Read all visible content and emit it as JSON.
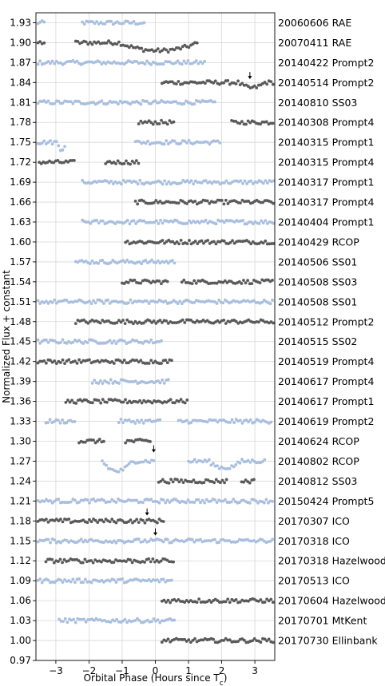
{
  "chart_data": {
    "type": "scatter",
    "title": "",
    "xlabel": "Orbital Phase (Hours since T",
    "xlabel_subscript": "c",
    "xlabel_close": ")",
    "ylabel": "Normalized Flux + constant",
    "xlim": [
      -3.6,
      3.6
    ],
    "ylim": [
      0.97,
      1.945
    ],
    "xticks": [
      -3,
      -2,
      -1,
      0,
      1,
      2,
      3
    ],
    "xtick_labels": [
      "−3",
      "−2",
      "−1",
      "0",
      "1",
      "2",
      "3"
    ],
    "yticks": [
      0.97,
      1.0,
      1.03,
      1.06,
      1.09,
      1.12,
      1.15,
      1.18,
      1.21,
      1.24,
      1.27,
      1.3,
      1.33,
      1.36,
      1.39,
      1.42,
      1.45,
      1.48,
      1.51,
      1.54,
      1.57,
      1.6,
      1.63,
      1.66,
      1.69,
      1.72,
      1.75,
      1.78,
      1.81,
      1.84,
      1.87,
      1.9,
      1.93
    ],
    "ytick_labels": [
      "0.97",
      "1.00",
      "1.03",
      "1.06",
      "1.09",
      "1.12",
      "1.15",
      "1.18",
      "1.21",
      "1.24",
      "1.27",
      "1.30",
      "1.33",
      "1.36",
      "1.39",
      "1.42",
      "1.45",
      "1.48",
      "1.51",
      "1.54",
      "1.57",
      "1.60",
      "1.63",
      "1.66",
      "1.69",
      "1.72",
      "1.75",
      "1.78",
      "1.81",
      "1.84",
      "1.87",
      "1.90",
      "1.93"
    ],
    "grid": true,
    "colors": {
      "light": "#a9bfe0",
      "dark": "#5a5a5a"
    },
    "series": [
      {
        "name": "20060606 RAE",
        "level": 1.93,
        "color": "light",
        "segments": [
          [
            -3.6,
            -3.3
          ],
          [
            -2.2,
            -0.3
          ]
        ],
        "dips": [
          [
            -3.1,
            -2.85,
            0.015
          ]
        ]
      },
      {
        "name": "20070411 RAE",
        "level": 1.9,
        "color": "dark",
        "segments": [
          [
            -3.6,
            -3.35
          ],
          [
            -2.4,
            1.3
          ]
        ],
        "dips": [
          [
            -1.1,
            1.3,
            0.012
          ]
        ]
      },
      {
        "name": "20140422 Prompt2",
        "level": 1.87,
        "color": "light",
        "segments": [
          [
            -3.6,
            1.5
          ]
        ],
        "dips": []
      },
      {
        "name": "20140514 Prompt2",
        "level": 1.84,
        "color": "dark",
        "segments": [
          [
            0.2,
            3.6
          ]
        ],
        "dips": [
          [
            2.5,
            3.3,
            0.008
          ]
        ]
      },
      {
        "name": "20140810 SS03",
        "level": 1.81,
        "color": "light",
        "segments": [
          [
            -3.6,
            1.8
          ]
        ],
        "dips": []
      },
      {
        "name": "20140308 Prompt4",
        "level": 1.78,
        "color": "dark",
        "segments": [
          [
            -0.5,
            0.6
          ],
          [
            2.3,
            3.6
          ]
        ],
        "dips": []
      },
      {
        "name": "20140315 Prompt1",
        "level": 1.75,
        "color": "light",
        "segments": [
          [
            -3.6,
            -2.7
          ],
          [
            -0.6,
            2.0
          ]
        ],
        "dips": [
          [
            -2.95,
            -2.7,
            0.01
          ]
        ]
      },
      {
        "name": "20140315 Prompt4",
        "level": 1.72,
        "color": "dark",
        "segments": [
          [
            -3.5,
            -2.4
          ],
          [
            -1.5,
            -0.5
          ]
        ],
        "dips": []
      },
      {
        "name": "20140317 Prompt1",
        "level": 1.69,
        "color": "light",
        "segments": [
          [
            -2.2,
            3.6
          ]
        ],
        "dips": []
      },
      {
        "name": "20140317 Prompt4",
        "level": 1.66,
        "color": "dark",
        "segments": [
          [
            -0.6,
            3.6
          ]
        ],
        "dips": []
      },
      {
        "name": "20140404 Prompt1",
        "level": 1.63,
        "color": "light",
        "segments": [
          [
            -2.2,
            3.6
          ]
        ],
        "dips": []
      },
      {
        "name": "20140429 RCOP",
        "level": 1.6,
        "color": "dark",
        "segments": [
          [
            -0.9,
            3.6
          ]
        ],
        "dips": []
      },
      {
        "name": "20140506 SS01",
        "level": 1.57,
        "color": "light",
        "segments": [
          [
            -2.4,
            0.6
          ]
        ],
        "dips": []
      },
      {
        "name": "20140508 SS03",
        "level": 1.54,
        "color": "dark",
        "segments": [
          [
            -1.0,
            0.4
          ],
          [
            0.8,
            3.6
          ]
        ],
        "dips": []
      },
      {
        "name": "20140508 SS01",
        "level": 1.51,
        "color": "light",
        "segments": [
          [
            -3.6,
            3.6
          ]
        ],
        "dips": []
      },
      {
        "name": "20140512 Prompt2",
        "level": 1.48,
        "color": "dark",
        "segments": [
          [
            -2.4,
            3.6
          ]
        ],
        "dips": []
      },
      {
        "name": "20140515 SS02",
        "level": 1.45,
        "color": "light",
        "segments": [
          [
            -3.6,
            0.2
          ]
        ],
        "dips": []
      },
      {
        "name": "20140519 Prompt4",
        "level": 1.42,
        "color": "dark",
        "segments": [
          [
            -3.6,
            0.5
          ]
        ],
        "dips": []
      },
      {
        "name": "20140617 Prompt4",
        "level": 1.39,
        "color": "light",
        "segments": [
          [
            -1.9,
            0.4
          ]
        ],
        "dips": []
      },
      {
        "name": "20140617 Prompt1",
        "level": 1.36,
        "color": "dark",
        "segments": [
          [
            -2.7,
            1.0
          ]
        ],
        "dips": []
      },
      {
        "name": "20140619 Prompt2",
        "level": 1.33,
        "color": "light",
        "segments": [
          [
            -3.3,
            -2.4
          ],
          [
            -1.1,
            0.2
          ],
          [
            0.7,
            3.5
          ]
        ],
        "dips": []
      },
      {
        "name": "20140624 RCOP",
        "level": 1.3,
        "color": "dark",
        "segments": [
          [
            -2.3,
            -1.5
          ],
          [
            -0.9,
            -0.1
          ]
        ],
        "dips": []
      },
      {
        "name": "20140802 RCOP",
        "level": 1.27,
        "color": "light",
        "segments": [
          [
            -1.6,
            0.0
          ],
          [
            1.0,
            3.3
          ]
        ],
        "dips": [
          [
            -1.6,
            -0.7,
            0.015
          ],
          [
            1.6,
            2.6,
            0.01
          ]
        ]
      },
      {
        "name": "20140812 SS03",
        "level": 1.24,
        "color": "dark",
        "segments": [
          [
            0.1,
            2.2
          ],
          [
            2.6,
            3.0
          ]
        ],
        "dips": []
      },
      {
        "name": "20150424 Prompt5",
        "level": 1.21,
        "color": "light",
        "segments": [
          [
            -3.6,
            3.6
          ]
        ],
        "dips": []
      },
      {
        "name": "20170307 ICO",
        "level": 1.18,
        "color": "dark",
        "segments": [
          [
            -3.6,
            0.3
          ]
        ],
        "dips": []
      },
      {
        "name": "20170318 ICO",
        "level": 1.15,
        "color": "light",
        "segments": [
          [
            -3.6,
            3.6
          ]
        ],
        "dips": []
      },
      {
        "name": "20170318 Hazelwood",
        "level": 1.12,
        "color": "dark",
        "segments": [
          [
            -3.3,
            0.6
          ]
        ],
        "dips": []
      },
      {
        "name": "20170513 ICO",
        "level": 1.09,
        "color": "light",
        "segments": [
          [
            -3.6,
            0.5
          ]
        ],
        "dips": []
      },
      {
        "name": "20170604 Hazelwood",
        "level": 1.06,
        "color": "dark",
        "segments": [
          [
            0.2,
            3.6
          ]
        ],
        "dips": []
      },
      {
        "name": "20170701 MtKent",
        "level": 1.03,
        "color": "light",
        "segments": [
          [
            -2.9,
            0.6
          ]
        ],
        "dips": []
      },
      {
        "name": "20170730 Ellinbank",
        "level": 1.0,
        "color": "dark",
        "segments": [
          [
            0.2,
            3.6
          ]
        ],
        "dips": []
      }
    ],
    "annotations": [
      {
        "type": "arrow",
        "x": 2.85,
        "y": 1.845
      },
      {
        "type": "arrow",
        "x": -0.05,
        "y": 1.283
      },
      {
        "type": "arrow",
        "x": -0.25,
        "y": 1.188
      },
      {
        "type": "arrow",
        "x": 0.0,
        "y": 1.158
      }
    ]
  }
}
